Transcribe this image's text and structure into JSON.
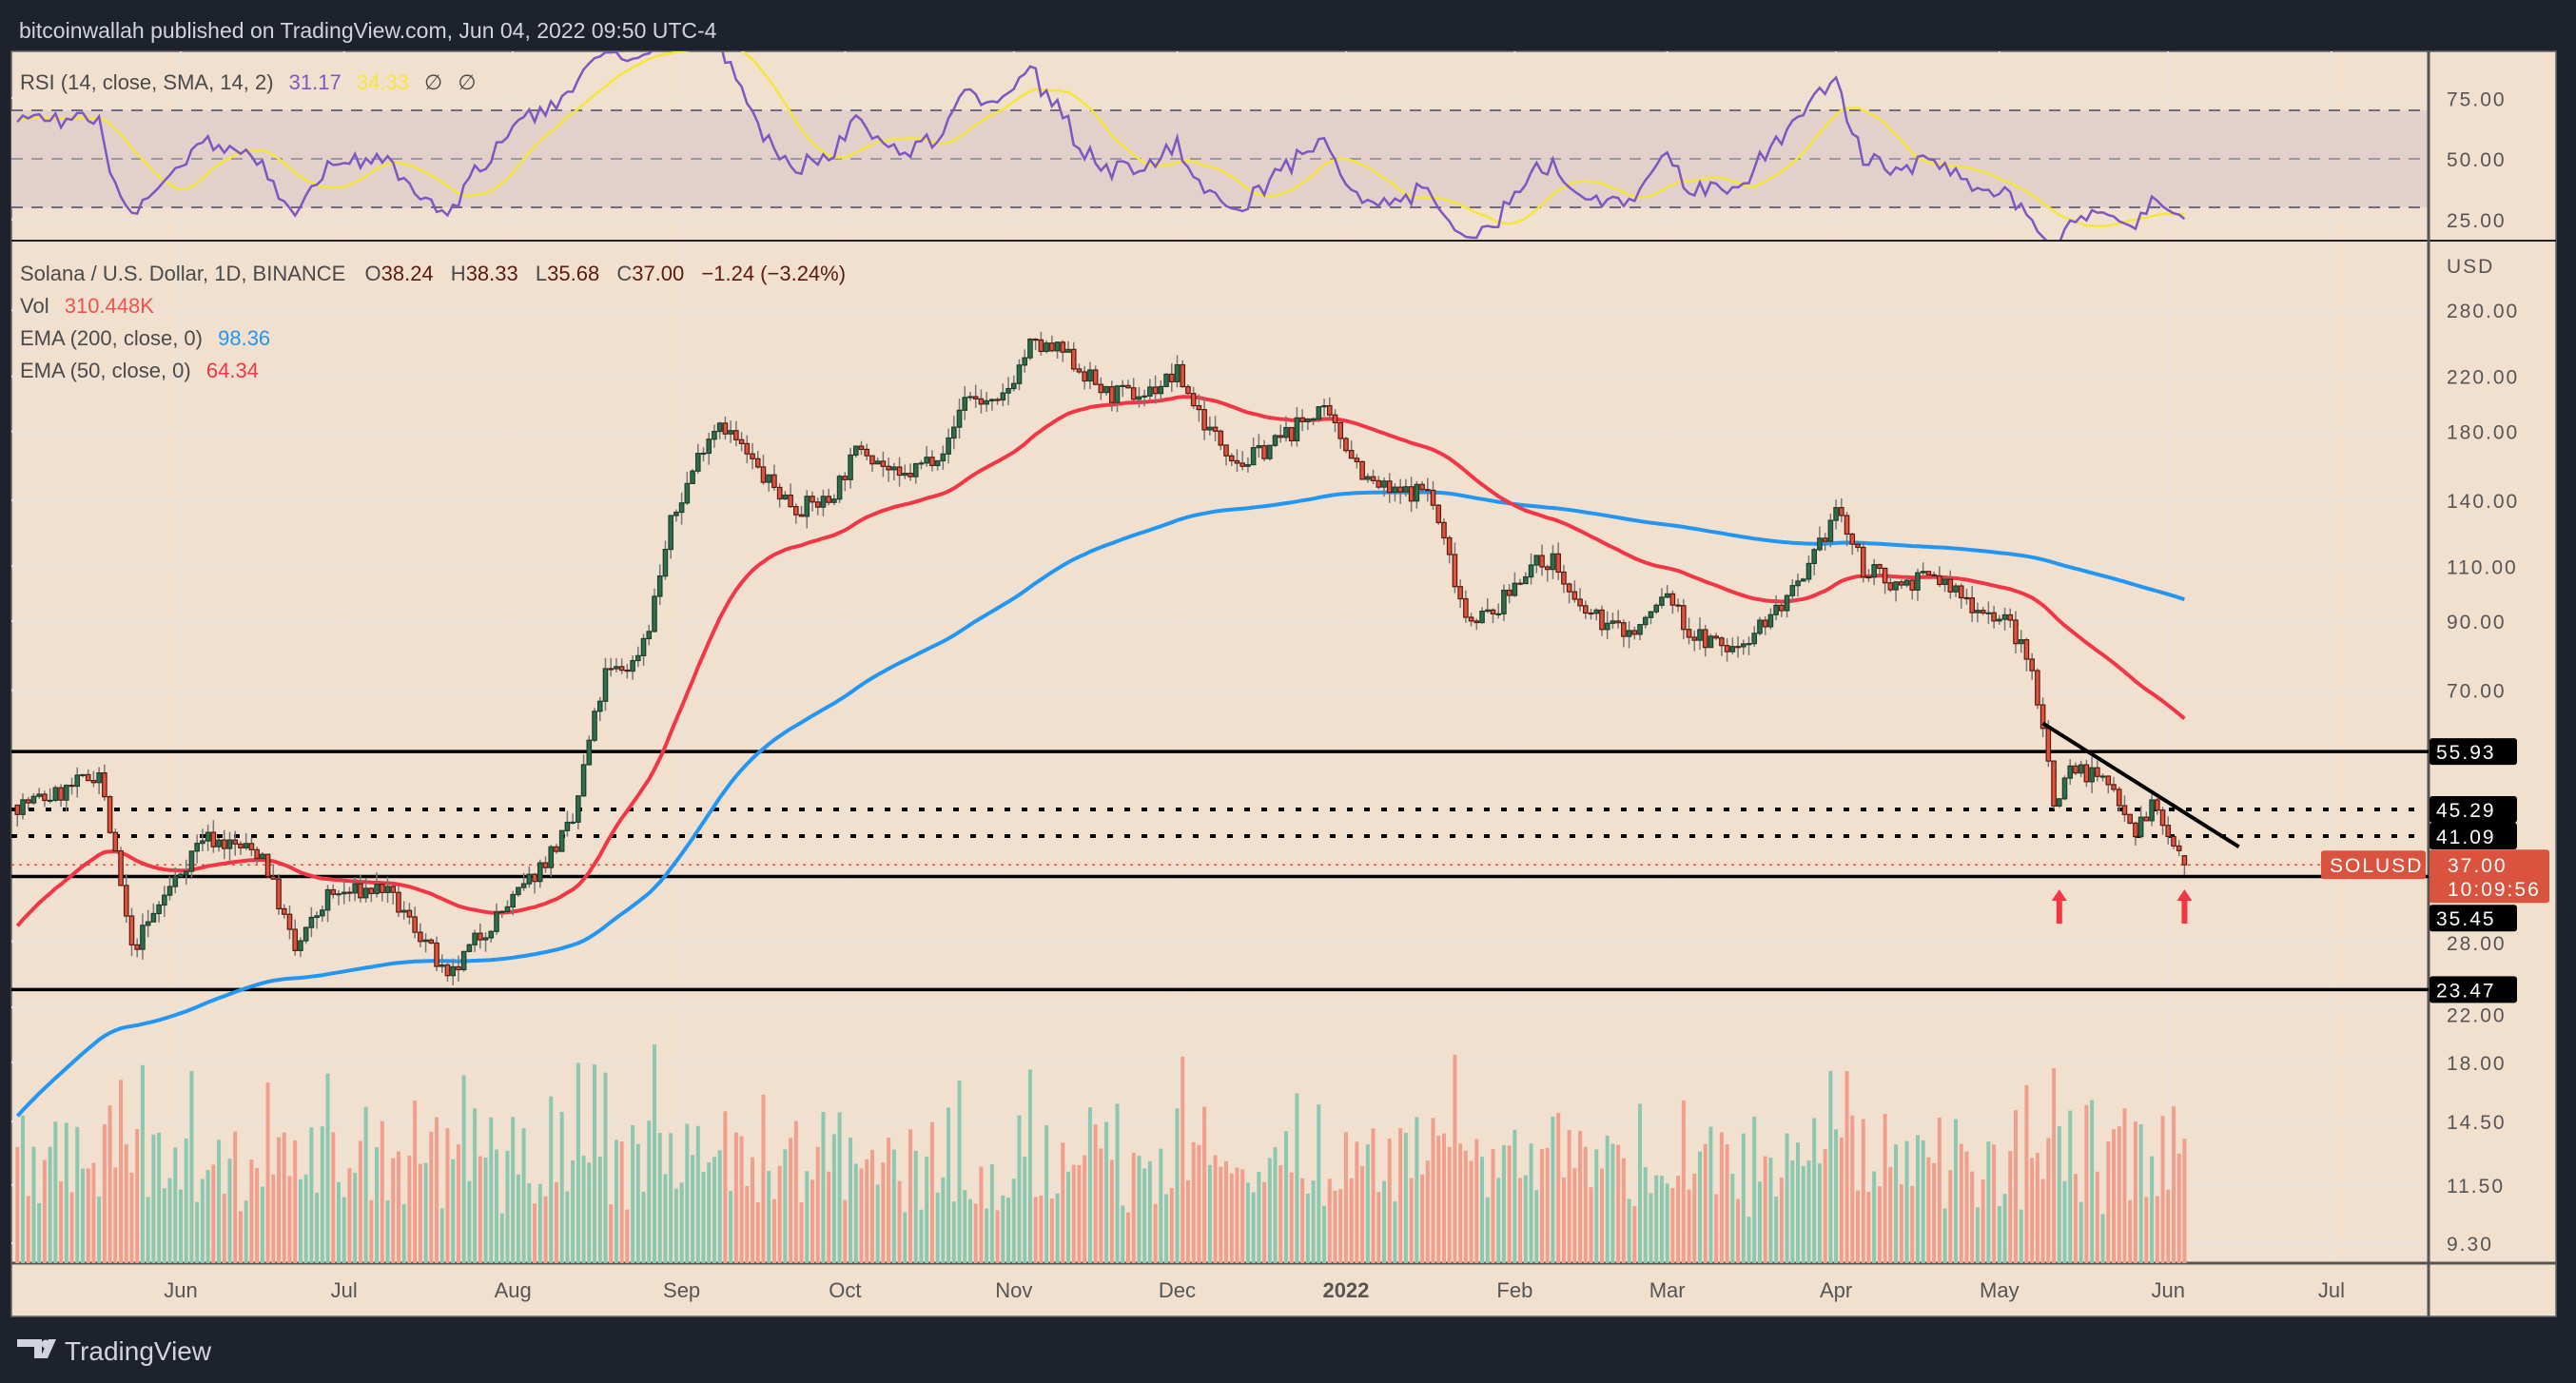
{
  "header": {
    "publisher_line": "bitcoinwallah published on TradingView.com, Jun 04, 2022 09:50 UTC-4"
  },
  "rsi_legend": {
    "label": "RSI (14, close, SMA, 14, 2)",
    "rsi_value": "31.17",
    "sma_value": "34.33",
    "extra1": "∅",
    "extra2": "∅"
  },
  "main_legend": {
    "symbol": "Solana / U.S. Dollar, 1D, BINANCE",
    "o_label": "O",
    "o_value": "38.24",
    "h_label": "H",
    "h_value": "38.33",
    "l_label": "L",
    "l_value": "35.68",
    "c_label": "C",
    "c_value": "37.00",
    "change": "−1.24 (−3.24%)",
    "vol_label": "Vol",
    "vol_value": "310.448K",
    "ema200_label": "EMA (200, close, 0)",
    "ema200_value": "98.36",
    "ema50_label": "EMA (50, close, 0)",
    "ema50_value": "64.34"
  },
  "colors": {
    "background": "#f2e0cf",
    "frame": "#1e222d",
    "up": "#2f6e4c",
    "down": "#e0533d",
    "ema200": "#2196f3",
    "ema50": "#f23645",
    "rsi": "#7e57c2",
    "rsi_sma": "#f5e63a",
    "arrow": "#f23645"
  },
  "footer": {
    "brand": "TradingView"
  },
  "chart_data": {
    "type": "candlestick",
    "title": "Solana / U.S. Dollar, 1D, BINANCE",
    "ylabel": "USD",
    "yscale": "log",
    "ylim": [
      9,
      300
    ],
    "y_ticks": [
      "280.00",
      "220.00",
      "180.00",
      "140.00",
      "110.00",
      "90.00",
      "70.00",
      "28.00",
      "22.00",
      "18.00",
      "14.50",
      "11.50",
      "9.30"
    ],
    "y_tick_values": [
      280,
      220,
      180,
      140,
      110,
      90,
      70,
      28,
      22,
      18,
      14.5,
      11.5,
      9.3
    ],
    "x_ticks": [
      {
        "label": "Jun",
        "date": "2021-06-01"
      },
      {
        "label": "Jul",
        "date": "2021-07-01"
      },
      {
        "label": "Aug",
        "date": "2021-08-01"
      },
      {
        "label": "Sep",
        "date": "2021-09-01"
      },
      {
        "label": "Oct",
        "date": "2021-10-01"
      },
      {
        "label": "Nov",
        "date": "2021-11-01"
      },
      {
        "label": "Dec",
        "date": "2021-12-01"
      },
      {
        "label": "2022",
        "date": "2022-01-01"
      },
      {
        "label": "Feb",
        "date": "2022-02-01"
      },
      {
        "label": "Mar",
        "date": "2022-03-01"
      },
      {
        "label": "Apr",
        "date": "2022-04-01"
      },
      {
        "label": "May",
        "date": "2022-05-01"
      },
      {
        "label": "Jun",
        "date": "2022-06-01"
      },
      {
        "label": "Jul",
        "date": "2022-07-01"
      }
    ],
    "key_closes": [
      [
        "2021-05-02",
        46
      ],
      [
        "2021-05-10",
        48
      ],
      [
        "2021-05-17",
        52
      ],
      [
        "2021-05-21",
        34
      ],
      [
        "2021-05-23",
        27
      ],
      [
        "2021-05-29",
        33
      ],
      [
        "2021-06-05",
        41
      ],
      [
        "2021-06-16",
        38.5
      ],
      [
        "2021-06-22",
        27
      ],
      [
        "2021-06-28",
        33
      ],
      [
        "2021-07-08",
        34
      ],
      [
        "2021-07-16",
        28
      ],
      [
        "2021-07-20",
        24
      ],
      [
        "2021-07-25",
        28
      ],
      [
        "2021-08-03",
        34
      ],
      [
        "2021-08-12",
        43
      ],
      [
        "2021-08-15",
        58
      ],
      [
        "2021-08-18",
        74
      ],
      [
        "2021-08-23",
        77
      ],
      [
        "2021-08-26",
        89
      ],
      [
        "2021-08-30",
        128
      ],
      [
        "2021-09-05",
        172
      ],
      [
        "2021-09-08",
        188
      ],
      [
        "2021-09-16",
        152
      ],
      [
        "2021-09-22",
        136
      ],
      [
        "2021-09-28",
        140
      ],
      [
        "2021-10-04",
        172
      ],
      [
        "2021-10-11",
        150
      ],
      [
        "2021-10-20",
        172
      ],
      [
        "2021-10-23",
        206
      ],
      [
        "2021-10-29",
        196
      ],
      [
        "2021-11-04",
        246
      ],
      [
        "2021-11-10",
        240
      ],
      [
        "2021-11-18",
        206
      ],
      [
        "2021-11-25",
        206
      ],
      [
        "2021-12-01",
        222
      ],
      [
        "2021-12-07",
        180
      ],
      [
        "2021-12-13",
        160
      ],
      [
        "2021-12-22",
        180
      ],
      [
        "2021-12-27",
        196
      ],
      [
        "2022-01-01",
        172
      ],
      [
        "2022-01-05",
        150
      ],
      [
        "2022-01-10",
        143
      ],
      [
        "2022-01-16",
        146
      ],
      [
        "2022-01-20",
        113
      ],
      [
        "2022-01-23",
        92
      ],
      [
        "2022-01-28",
        92
      ],
      [
        "2022-02-03",
        109
      ],
      [
        "2022-02-08",
        113
      ],
      [
        "2022-02-12",
        95
      ],
      [
        "2022-02-18",
        89
      ],
      [
        "2022-02-23",
        86
      ],
      [
        "2022-03-01",
        100
      ],
      [
        "2022-03-05",
        86
      ],
      [
        "2022-03-13",
        81
      ],
      [
        "2022-03-20",
        92
      ],
      [
        "2022-03-26",
        103
      ],
      [
        "2022-04-01",
        136
      ],
      [
        "2022-04-06",
        109
      ],
      [
        "2022-04-12",
        103
      ],
      [
        "2022-04-19",
        106
      ],
      [
        "2022-04-25",
        97
      ],
      [
        "2022-05-03",
        89
      ],
      [
        "2022-05-07",
        74.5
      ],
      [
        "2022-05-09",
        62
      ],
      [
        "2022-05-11",
        46
      ],
      [
        "2022-05-14",
        53
      ],
      [
        "2022-05-19",
        51
      ],
      [
        "2022-05-23",
        47.5
      ],
      [
        "2022-05-26",
        42
      ],
      [
        "2022-05-29",
        46
      ],
      [
        "2022-06-04",
        37
      ]
    ],
    "last_candle": {
      "date": "2022-06-04",
      "open": 38.24,
      "high": 38.33,
      "low": 35.68,
      "close": 37.0
    },
    "ema200_start": 14.5,
    "ema50_start": 29,
    "horizontal_levels": [
      {
        "value": 55.93,
        "label": "55.93",
        "style": "solid"
      },
      {
        "value": 45.29,
        "label": "45.29",
        "style": "dotted"
      },
      {
        "value": 41.09,
        "label": "41.09",
        "style": "dotted"
      },
      {
        "value": 35.45,
        "label": "35.45",
        "style": "solid"
      },
      {
        "value": 23.47,
        "label": "23.47",
        "style": "solid"
      }
    ],
    "trendline": {
      "from": [
        "2022-05-09",
        62
      ],
      "to": [
        "2022-06-14",
        39.5
      ]
    },
    "arrows": [
      "2022-05-12",
      "2022-06-04"
    ],
    "current_price": {
      "symbol": "SOLUSD",
      "price": "37.00",
      "countdown": "10:09:56",
      "value": 37
    },
    "rsi": {
      "ticks": [
        "75.00",
        "50.00",
        "25.00"
      ],
      "tick_values": [
        75,
        50,
        25
      ],
      "upper_band": 70,
      "middle": 50,
      "lower_band": 30,
      "ylim": [
        16,
        95
      ]
    }
  }
}
